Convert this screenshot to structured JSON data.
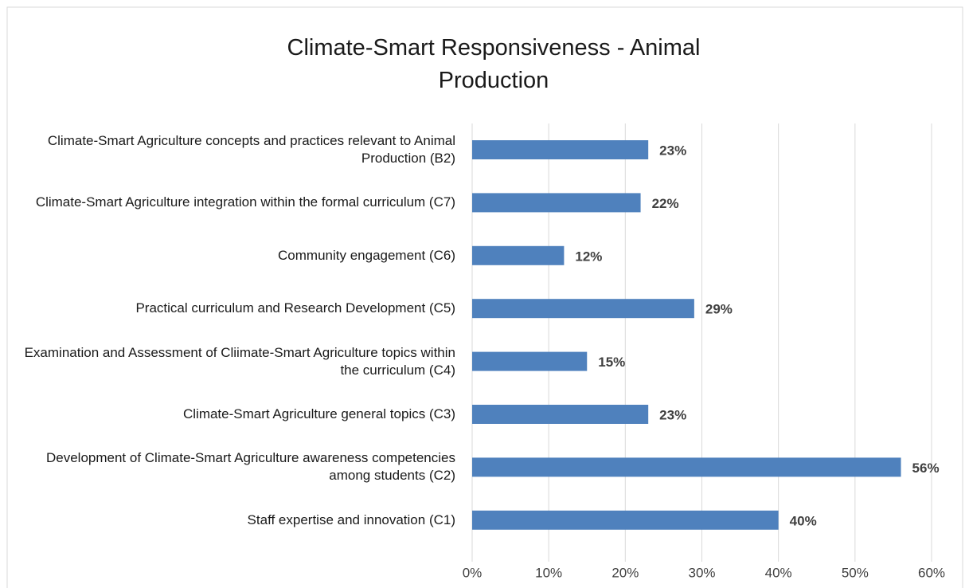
{
  "chart_data": {
    "type": "bar",
    "orientation": "horizontal",
    "title": "Climate-Smart Responsiveness - Animal Production",
    "categories": [
      "Climate-Smart Agriculture concepts and practices relevant to Animal Production (B2)",
      "Climate-Smart Agriculture integration within the formal curriculum (C7)",
      "Community engagement (C6)",
      "Practical curriculum and Research Development (C5)",
      "Examination and Assessment of Cliimate-Smart Agriculture topics within the curriculum (C4)",
      "Climate-Smart Agriculture general topics (C3)",
      "Development of Climate-Smart Agriculture awareness competencies among students (C2)",
      "Staff expertise and innovation (C1)"
    ],
    "values": [
      23,
      22,
      12,
      29,
      15,
      23,
      56,
      40
    ],
    "value_labels": [
      "23%",
      "22%",
      "12%",
      "29%",
      "15%",
      "23%",
      "56%",
      "40%"
    ],
    "color": "#4f81bd",
    "xlim": [
      0,
      60
    ],
    "xticks": [
      {
        "value": 0,
        "label": "0%"
      },
      {
        "value": 10,
        "label": "10%"
      },
      {
        "value": 20,
        "label": "20%"
      },
      {
        "value": 30,
        "label": "30%"
      },
      {
        "value": 40,
        "label": "40%"
      },
      {
        "value": 50,
        "label": "50%"
      },
      {
        "value": 60,
        "label": "60%"
      }
    ],
    "grid": true
  }
}
